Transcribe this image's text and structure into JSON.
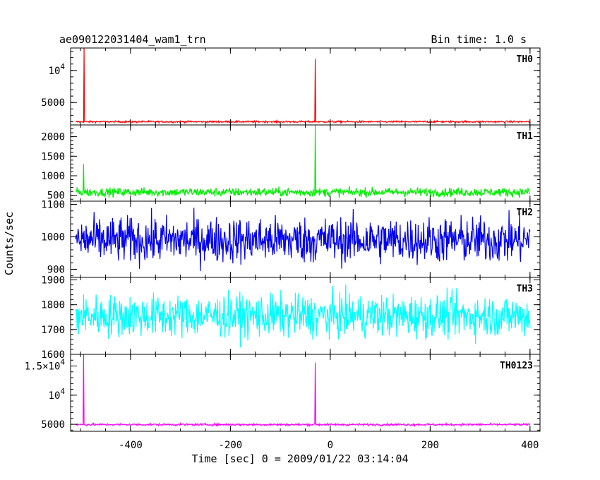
{
  "header": {
    "left_title": "ae090122031404_wam1_trn",
    "right_title": "Bin time: 1.0 s"
  },
  "chart_data": {
    "type": "line",
    "title": "ae090122031404_wam1_trn",
    "subtitle": "Bin time: 1.0 s",
    "xlabel": "Time [sec] 0 = 2009/01/22 03:14:04",
    "ylabel": "Counts/sec",
    "xlim": [
      -520,
      420
    ],
    "x_ticks": [
      -400,
      -200,
      0,
      200,
      400
    ],
    "grid": false,
    "bin_time_s": 1.0,
    "series": [
      {
        "name": "TH0",
        "color": "#ff0000",
        "ylim": [
          1500,
          13500
        ],
        "y_ticks": [
          {
            "value": 5000,
            "label": "5000"
          },
          {
            "value": 10000,
            "label": "10^4"
          }
        ],
        "baseline": 2000,
        "noise": 70,
        "spikes": [
          {
            "x": -493,
            "y": 13500
          },
          {
            "x": -30,
            "y": 11800
          }
        ]
      },
      {
        "name": "TH1",
        "color": "#00ee00",
        "ylim": [
          350,
          2300
        ],
        "y_ticks": [
          {
            "value": 500,
            "label": "500"
          },
          {
            "value": 1000,
            "label": "1000"
          },
          {
            "value": 1500,
            "label": "1500"
          },
          {
            "value": 2000,
            "label": "2000"
          }
        ],
        "baseline": 580,
        "noise": 55,
        "spikes": [
          {
            "x": -494,
            "y": 1300
          },
          {
            "x": -30,
            "y": 2300
          }
        ]
      },
      {
        "name": "TH2",
        "color": "#0000ee",
        "ylim": [
          875,
          1110
        ],
        "y_ticks": [
          {
            "value": 900,
            "label": "900"
          },
          {
            "value": 1000,
            "label": "1000"
          },
          {
            "value": 1100,
            "label": "1100"
          }
        ],
        "baseline": 990,
        "noise": 35,
        "spikes": []
      },
      {
        "name": "TH3",
        "color": "#00ffff",
        "ylim": [
          1600,
          1910
        ],
        "y_ticks": [
          {
            "value": 1600,
            "label": "1600"
          },
          {
            "value": 1700,
            "label": "1700"
          },
          {
            "value": 1800,
            "label": "1800"
          },
          {
            "value": 1900,
            "label": "1900"
          }
        ],
        "baseline": 1755,
        "noise": 42,
        "spikes": []
      },
      {
        "name": "TH0123",
        "color": "#ff00ff",
        "ylim": [
          3800,
          17000
        ],
        "y_ticks": [
          {
            "value": 5000,
            "label": "5000"
          },
          {
            "value": 10000,
            "label": "10^4"
          },
          {
            "value": 15000,
            "label": "1.5×10^4"
          }
        ],
        "baseline": 4950,
        "noise": 90,
        "spikes": [
          {
            "x": -494,
            "y": 17000
          },
          {
            "x": -30,
            "y": 15600
          }
        ]
      }
    ]
  }
}
